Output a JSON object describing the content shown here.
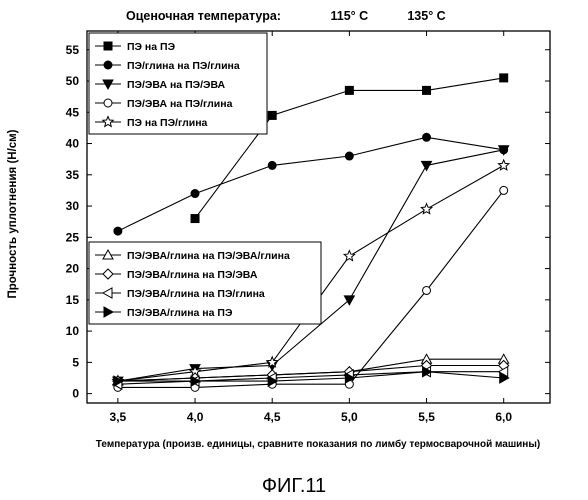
{
  "chart_data": {
    "type": "line",
    "header": {
      "label": "Оценочная температура:",
      "markers": [
        {
          "x": 5.0,
          "text": "115° C"
        },
        {
          "x": 5.5,
          "text": "135° C"
        }
      ]
    },
    "ylabel": "Прочность уплотнения (Н/см)",
    "xlabel": "Температура (произв. единицы, сравните показания по лимбу термосварочной машины)",
    "caption": "ФИГ.11",
    "xlim": [
      3.3,
      6.3
    ],
    "ylim": [
      -1.5,
      58
    ],
    "x_ticks": [
      3.5,
      4.0,
      4.5,
      5.0,
      5.5,
      6.0
    ],
    "x_tick_labels": [
      "3,5",
      "4,0",
      "4,5",
      "5,0",
      "5,5",
      "6,0"
    ],
    "y_ticks": [
      0,
      5,
      10,
      15,
      20,
      25,
      30,
      35,
      40,
      45,
      50,
      55
    ],
    "y_tick_labels": [
      "0",
      "5",
      "10",
      "15",
      "20",
      "25",
      "30",
      "35",
      "40",
      "45",
      "50",
      "55"
    ],
    "legends": [
      {
        "placement": "top-left",
        "series": [
          0,
          1,
          2,
          3,
          4
        ]
      },
      {
        "placement": "bottom-left",
        "series": [
          5,
          6,
          7,
          8
        ]
      }
    ],
    "series": [
      {
        "name": "ПЭ на ПЭ",
        "marker": "square-filled",
        "x": [
          4.0,
          4.5,
          5.0,
          5.5,
          6.0
        ],
        "values": [
          28,
          44.5,
          48.5,
          48.5,
          50.5
        ]
      },
      {
        "name": "ПЭ/глина на ПЭ/глина",
        "marker": "circle-filled",
        "x": [
          3.5,
          4.0,
          4.5,
          5.0,
          5.5,
          6.0
        ],
        "values": [
          26,
          32,
          36.5,
          38,
          41,
          39
        ]
      },
      {
        "name": "ПЭ/ЭВА на ПЭ/ЭВА",
        "marker": "triangle-down-filled",
        "x": [
          3.5,
          4.0,
          4.5,
          5.0,
          5.5,
          6.0
        ],
        "values": [
          2,
          4,
          4.5,
          15,
          36.5,
          39
        ]
      },
      {
        "name": "ПЭ/ЭВА на ПЭ/глина",
        "marker": "circle-open",
        "x": [
          3.5,
          4.0,
          4.5,
          5.0,
          5.5,
          6.0
        ],
        "values": [
          1,
          1,
          1.5,
          1.5,
          16.5,
          32.5
        ]
      },
      {
        "name": "ПЭ на ПЭ/глина",
        "marker": "star-open",
        "x": [
          3.5,
          4.0,
          4.5,
          5.0,
          5.5,
          6.0
        ],
        "values": [
          2,
          3.5,
          5,
          22,
          29.5,
          36.5
        ]
      },
      {
        "name": "ПЭ/ЭВА/глина на ПЭ/ЭВА/глина",
        "marker": "triangle-up-open",
        "x": [
          3.5,
          4.0,
          4.5,
          5.0,
          5.5,
          6.0
        ],
        "values": [
          2,
          2.5,
          3,
          3.5,
          5.5,
          5.5
        ]
      },
      {
        "name": "ПЭ/ЭВА/глина на ПЭ/ЭВА",
        "marker": "diamond-open",
        "x": [
          3.5,
          4.0,
          4.5,
          5.0,
          5.5,
          6.0
        ],
        "values": [
          2,
          2.5,
          3,
          3.5,
          4.5,
          4.5
        ]
      },
      {
        "name": "ПЭ/ЭВА/глина на ПЭ/глина",
        "marker": "triangle-left-open",
        "x": [
          3.5,
          4.0,
          4.5,
          5.0,
          5.5,
          6.0
        ],
        "values": [
          1.5,
          2,
          2.5,
          3,
          3.5,
          3.5
        ]
      },
      {
        "name": "ПЭ/ЭВА/глина на ПЭ",
        "marker": "triangle-right-filled",
        "x": [
          3.5,
          4.0,
          4.5,
          5.0,
          5.5,
          6.0
        ],
        "values": [
          2,
          2,
          2,
          2.5,
          3.5,
          2.5
        ]
      }
    ]
  }
}
